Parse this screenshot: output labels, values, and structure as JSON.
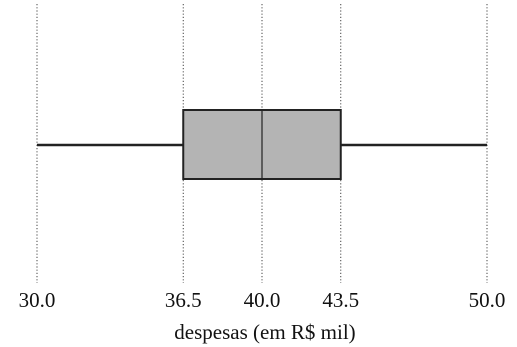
{
  "chart_data": {
    "type": "box",
    "orientation": "horizontal",
    "xlabel": "despesas (em R$ mil)",
    "xlim": [
      30.0,
      50.0
    ],
    "ticks": [
      30.0,
      36.5,
      40.0,
      43.5,
      50.0
    ],
    "tick_labels": [
      "30.0",
      "36.5",
      "40.0",
      "43.5",
      "50.0"
    ],
    "grid": "vertical dotted lines at tick values",
    "box": {
      "min": 30.0,
      "q1": 36.5,
      "median": 40.0,
      "q3": 43.5,
      "max": 50.0
    },
    "colors": {
      "box_fill": "#b4b4b4",
      "stroke": "#222222"
    }
  }
}
